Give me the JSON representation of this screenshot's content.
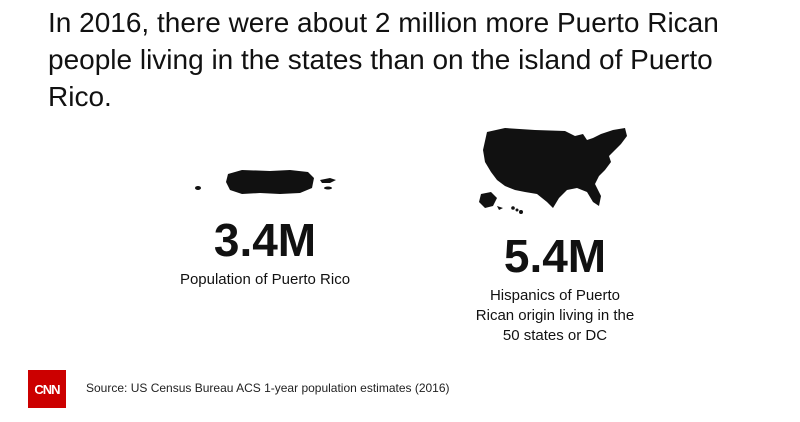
{
  "headline": "In 2016, there were about 2 million more Puerto Rican people living in the states than on the island of Puerto Rico.",
  "stats": [
    {
      "value": "3.4M",
      "label": "Population of Puerto Rico",
      "map_icon": "puerto-rico-map-icon"
    },
    {
      "value": "5.4M",
      "label_lines": [
        "Hispanics of Puerto",
        "Rican origin living in the",
        "50 states or DC"
      ],
      "map_icon": "usa-map-icon"
    }
  ],
  "footer": {
    "logo_text": "CNN",
    "source": "Source: US Census Bureau ACS 1-year population estimates (2016)"
  },
  "colors": {
    "text": "#111111",
    "logo_bg": "#cc0000",
    "background": "#ffffff"
  }
}
